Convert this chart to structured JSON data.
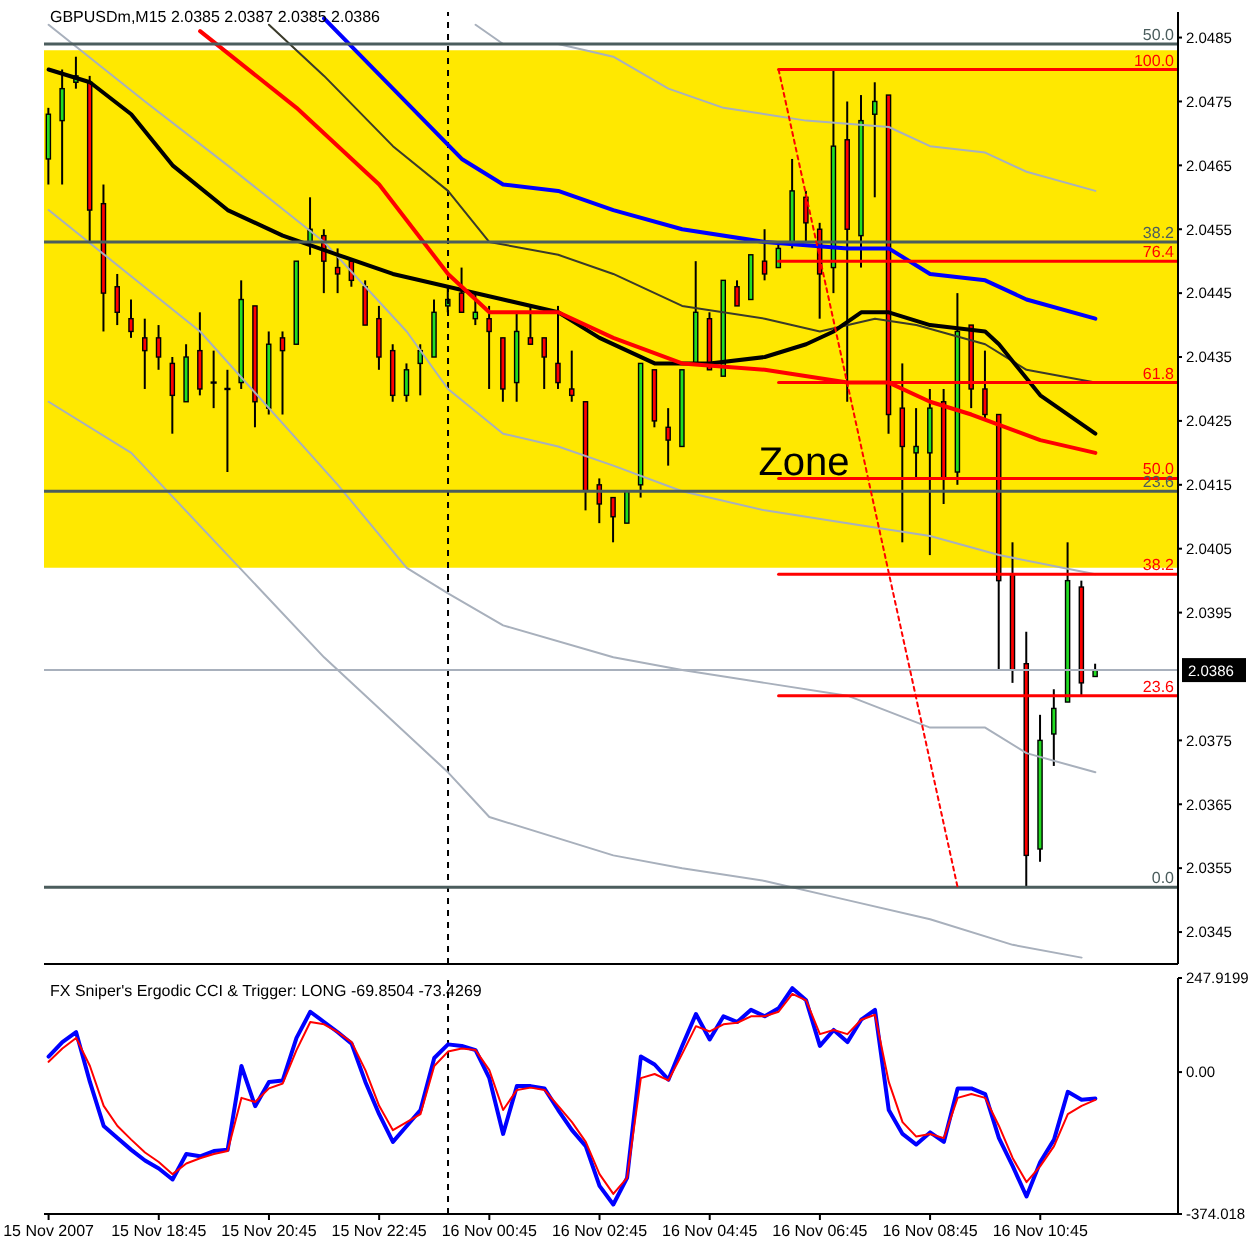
{
  "chart_data": [
    {
      "type": "candlestick",
      "title": "GBPUSDm,M15 2.0385 2.0387 2.0385 2.0386",
      "x": [
        "2007-11-15T16:45",
        "2007-11-15T17:00",
        "2007-11-15T17:15",
        "2007-11-15T17:30",
        "2007-11-15T17:45",
        "2007-11-15T18:00",
        "2007-11-15T18:15",
        "2007-11-15T18:30",
        "2007-11-15T18:45",
        "2007-11-15T19:00",
        "2007-11-15T19:15",
        "2007-11-15T19:30",
        "2007-11-15T19:45",
        "2007-11-15T20:00",
        "2007-11-15T20:15",
        "2007-11-15T20:30",
        "2007-11-15T20:45",
        "2007-11-15T21:00",
        "2007-11-15T21:15",
        "2007-11-15T21:30",
        "2007-11-15T21:45",
        "2007-11-15T22:00",
        "2007-11-15T22:15",
        "2007-11-15T22:30",
        "2007-11-15T22:45",
        "2007-11-15T23:00",
        "2007-11-15T23:15",
        "2007-11-15T23:30",
        "2007-11-15T23:45",
        "2007-11-16T00:00",
        "2007-11-16T00:15",
        "2007-11-16T00:30",
        "2007-11-16T00:45",
        "2007-11-16T01:00",
        "2007-11-16T01:15",
        "2007-11-16T01:30",
        "2007-11-16T01:45",
        "2007-11-16T02:00",
        "2007-11-16T02:15",
        "2007-11-16T02:30",
        "2007-11-16T02:45",
        "2007-11-16T03:00",
        "2007-11-16T03:15",
        "2007-11-16T03:30",
        "2007-11-16T03:45",
        "2007-11-16T04:00",
        "2007-11-16T04:15",
        "2007-11-16T04:30",
        "2007-11-16T04:45",
        "2007-11-16T05:00",
        "2007-11-16T05:15",
        "2007-11-16T05:30",
        "2007-11-16T05:45",
        "2007-11-16T06:00",
        "2007-11-16T06:15",
        "2007-11-16T06:30",
        "2007-11-16T06:45",
        "2007-11-16T07:00",
        "2007-11-16T07:15",
        "2007-11-16T07:30",
        "2007-11-16T07:45",
        "2007-11-16T08:00",
        "2007-11-16T08:15",
        "2007-11-16T08:30",
        "2007-11-16T08:45",
        "2007-11-16T09:00",
        "2007-11-16T09:15",
        "2007-11-16T09:30",
        "2007-11-16T09:45",
        "2007-11-16T10:00",
        "2007-11-16T10:15",
        "2007-11-16T10:30",
        "2007-11-16T10:45",
        "2007-11-16T11:00",
        "2007-11-16T11:15",
        "2007-11-16T11:30",
        "2007-11-16T11:45"
      ],
      "ohlc": [
        [
          2.0466,
          2.0474,
          2.0462,
          2.0473
        ],
        [
          2.0472,
          2.048,
          2.0462,
          2.0477
        ],
        [
          2.0478,
          2.0482,
          2.0477,
          2.0479
        ],
        [
          2.0478,
          2.0479,
          2.0453,
          2.0458
        ],
        [
          2.0459,
          2.0462,
          2.0439,
          2.0445
        ],
        [
          2.0446,
          2.0448,
          2.044,
          2.0442
        ],
        [
          2.0441,
          2.0444,
          2.0438,
          2.0439
        ],
        [
          2.0438,
          2.0441,
          2.043,
          2.0436
        ],
        [
          2.0438,
          2.044,
          2.0433,
          2.0435
        ],
        [
          2.0434,
          2.0435,
          2.0423,
          2.0429
        ],
        [
          2.0428,
          2.0437,
          2.0428,
          2.0435
        ],
        [
          2.0436,
          2.0442,
          2.0429,
          2.043
        ],
        [
          2.0431,
          2.0436,
          2.0427,
          2.0431
        ],
        [
          2.043,
          2.0433,
          2.0417,
          2.043
        ],
        [
          2.0431,
          2.0447,
          2.043,
          2.0444
        ],
        [
          2.0443,
          2.0443,
          2.0424,
          2.0428
        ],
        [
          2.0427,
          2.0439,
          2.0426,
          2.0437
        ],
        [
          2.0438,
          2.0439,
          2.0426,
          2.0436
        ],
        [
          2.0437,
          2.045,
          2.0437,
          2.045
        ],
        [
          2.0453,
          2.046,
          2.0451,
          2.0455
        ],
        [
          2.0454,
          2.0455,
          2.0445,
          2.045
        ],
        [
          2.0449,
          2.0452,
          2.0445,
          2.0448
        ],
        [
          2.045,
          2.045,
          2.0446,
          2.0447
        ],
        [
          2.0446,
          2.0447,
          2.044,
          2.044
        ],
        [
          2.0441,
          2.0443,
          2.0433,
          2.0435
        ],
        [
          2.0436,
          2.0437,
          2.0428,
          2.0429
        ],
        [
          2.0429,
          2.0434,
          2.0428,
          2.0433
        ],
        [
          2.0434,
          2.0437,
          2.0429,
          2.0436
        ],
        [
          2.0435,
          2.0444,
          2.0435,
          2.0442
        ],
        [
          2.0443,
          2.0446,
          2.0442,
          2.0444
        ],
        [
          2.0445,
          2.0449,
          2.0442,
          2.0442
        ],
        [
          2.0441,
          2.0445,
          2.044,
          2.0442
        ],
        [
          2.0441,
          2.0443,
          2.043,
          2.0439
        ],
        [
          2.0438,
          2.0438,
          2.0428,
          2.043
        ],
        [
          2.0431,
          2.0442,
          2.0428,
          2.0439
        ],
        [
          2.0438,
          2.0443,
          2.0437,
          2.0437
        ],
        [
          2.0438,
          2.0438,
          2.043,
          2.0435
        ],
        [
          2.0434,
          2.0443,
          2.043,
          2.0431
        ],
        [
          2.043,
          2.0436,
          2.0428,
          2.0429
        ],
        [
          2.0428,
          2.0428,
          2.0411,
          2.0414
        ],
        [
          2.0415,
          2.0416,
          2.0409,
          2.0412
        ],
        [
          2.0413,
          2.0413,
          2.0406,
          2.041
        ],
        [
          2.0409,
          2.0414,
          2.0409,
          2.0414
        ],
        [
          2.0415,
          2.0434,
          2.0413,
          2.0434
        ],
        [
          2.0433,
          2.0433,
          2.0424,
          2.0425
        ],
        [
          2.0424,
          2.0427,
          2.0418,
          2.0422
        ],
        [
          2.0421,
          2.0433,
          2.0421,
          2.0433
        ],
        [
          2.0434,
          2.045,
          2.0434,
          2.0442
        ],
        [
          2.0441,
          2.0442,
          2.0433,
          2.0433
        ],
        [
          2.0432,
          2.0447,
          2.0432,
          2.0447
        ],
        [
          2.0446,
          2.0447,
          2.0443,
          2.0443
        ],
        [
          2.0444,
          2.0451,
          2.0444,
          2.0451
        ],
        [
          2.045,
          2.0455,
          2.0447,
          2.0448
        ],
        [
          2.0449,
          2.0453,
          2.0449,
          2.0452
        ],
        [
          2.0453,
          2.0466,
          2.0452,
          2.0461
        ],
        [
          2.046,
          2.0461,
          2.0453,
          2.0456
        ],
        [
          2.0455,
          2.0456,
          2.0441,
          2.0448
        ],
        [
          2.0449,
          2.048,
          2.0445,
          2.0468
        ],
        [
          2.0469,
          2.0475,
          2.0428,
          2.0455
        ],
        [
          2.0454,
          2.0476,
          2.0449,
          2.0472
        ],
        [
          2.0473,
          2.0478,
          2.046,
          2.0475
        ],
        [
          2.0476,
          2.0476,
          2.0423,
          2.0426
        ],
        [
          2.0427,
          2.0434,
          2.0406,
          2.0421
        ],
        [
          2.042,
          2.0427,
          2.0416,
          2.0421
        ],
        [
          2.042,
          2.043,
          2.0404,
          2.0427
        ],
        [
          2.0428,
          2.043,
          2.0412,
          2.0416
        ],
        [
          2.0417,
          2.0445,
          2.0415,
          2.0439
        ],
        [
          2.044,
          2.044,
          2.0427,
          2.043
        ],
        [
          2.043,
          2.0436,
          2.0425,
          2.0426
        ],
        [
          2.0426,
          2.0426,
          2.0386,
          2.04
        ],
        [
          2.0401,
          2.0406,
          2.0384,
          2.0386
        ],
        [
          2.0387,
          2.0392,
          2.0352,
          2.0357
        ],
        [
          2.0358,
          2.0379,
          2.0356,
          2.0375
        ],
        [
          2.0376,
          2.0383,
          2.0371,
          2.038
        ],
        [
          2.0381,
          2.0406,
          2.0381,
          2.04
        ],
        [
          2.0399,
          2.04,
          2.0382,
          2.0384
        ],
        [
          2.0385,
          2.0387,
          2.0385,
          2.0386
        ]
      ],
      "colors": [
        "#22dd22",
        "#22dd22",
        "#22dd22",
        "#ff0000",
        "#ff0000",
        "#ff0000",
        "#ff0000",
        "#ff0000",
        "#ff0000",
        "#ff0000",
        "#22dd22",
        "#ff0000",
        "#000000",
        "#000000",
        "#22dd22",
        "#ff0000",
        "#22dd22",
        "#ff0000",
        "#22dd22",
        "#22dd22",
        "#ff0000",
        "#ff0000",
        "#ff0000",
        "#ff0000",
        "#ff0000",
        "#ff0000",
        "#22dd22",
        "#22dd22",
        "#22dd22",
        "#22dd22",
        "#ff0000",
        "#22dd22",
        "#ff0000",
        "#ff0000",
        "#22dd22",
        "#ff0000",
        "#ff0000",
        "#ff0000",
        "#ff0000",
        "#ff0000",
        "#ff0000",
        "#ff0000",
        "#22dd22",
        "#22dd22",
        "#ff0000",
        "#ff0000",
        "#22dd22",
        "#22dd22",
        "#ff0000",
        "#22dd22",
        "#ff0000",
        "#22dd22",
        "#ff0000",
        "#22dd22",
        "#22dd22",
        "#ff0000",
        "#ff0000",
        "#22dd22",
        "#ff0000",
        "#22dd22",
        "#22dd22",
        "#ff0000",
        "#ff0000",
        "#22dd22",
        "#22dd22",
        "#ff0000",
        "#22dd22",
        "#ff0000",
        "#ff0000",
        "#ff0000",
        "#ff0000",
        "#ff0000",
        "#22dd22",
        "#22dd22",
        "#22dd22",
        "#ff0000",
        "#22dd22"
      ],
      "xlim": [
        "2007-11-15T16:40",
        "2007-11-16T13:15"
      ],
      "ylim": [
        2.034,
        2.0489
      ],
      "yticks": [
        2.0345,
        2.0355,
        2.0365,
        2.0375,
        2.0395,
        2.0405,
        2.0415,
        2.0425,
        2.0435,
        2.0445,
        2.0455,
        2.0465,
        2.0475,
        2.0485
      ],
      "tick_labels": "y",
      "bands": [
        {
          "axis": "y",
          "from": 2.0402,
          "to": 2.0483,
          "label": "Zone",
          "color": "#ffe800"
        }
      ],
      "ref_lines": [
        {
          "axis": "x",
          "value": "2007-11-16T00:00",
          "color": "#000000",
          "line_style": "dashed"
        },
        {
          "axis": "y",
          "value": 2.0386,
          "label": "2.0386",
          "color": "#a8b0bc"
        }
      ],
      "series": [
        {
          "type": "line",
          "color": "#a8b0bc",
          "x": [
            "2007-11-15T16:45",
            "2007-11-15T18:15",
            "2007-11-15T20:00",
            "2007-11-15T21:45",
            "2007-11-16T00:00",
            "2007-11-16T00:45",
            "2007-11-16T03:00",
            "2007-11-16T04:15",
            "2007-11-16T05:45",
            "2007-11-16T07:15",
            "2007-11-16T08:45",
            "2007-11-16T10:15",
            "2007-11-16T11:30"
          ],
          "values": [
            2.0428,
            2.042,
            2.0404,
            2.0388,
            2.037,
            2.0363,
            2.0357,
            2.0355,
            2.0353,
            2.035,
            2.0347,
            2.0343,
            2.0341
          ]
        },
        {
          "type": "line",
          "color": "#a8b0bc",
          "x": [
            "2007-11-15T16:45",
            "2007-11-15T19:30",
            "2007-11-15T22:00",
            "2007-11-15T23:15",
            "2007-11-16T00:00",
            "2007-11-16T01:00",
            "2007-11-16T03:00",
            "2007-11-16T04:15",
            "2007-11-16T05:45",
            "2007-11-16T07:15",
            "2007-11-16T08:45",
            "2007-11-16T09:45",
            "2007-11-16T10:30",
            "2007-11-16T11:45"
          ],
          "values": [
            2.0458,
            2.0439,
            2.0415,
            2.0402,
            2.0398,
            2.0393,
            2.0388,
            2.0386,
            2.0384,
            2.0382,
            2.0377,
            2.0377,
            2.0373,
            2.037
          ]
        },
        {
          "type": "line",
          "color": "#a8b0bc",
          "x": [
            "2007-11-15T16:45",
            "2007-11-15T18:30",
            "2007-11-15T20:00",
            "2007-11-15T21:45",
            "2007-11-15T23:15",
            "2007-11-16T00:00",
            "2007-11-16T01:00",
            "2007-11-16T02:00",
            "2007-11-16T03:00",
            "2007-11-16T04:15",
            "2007-11-16T05:45",
            "2007-11-16T07:15",
            "2007-11-16T08:45",
            "2007-11-16T10:00",
            "2007-11-16T11:45"
          ],
          "values": [
            2.0487,
            2.0475,
            2.0465,
            2.0453,
            2.0439,
            2.043,
            2.0423,
            2.0421,
            2.0418,
            2.0414,
            2.0411,
            2.0409,
            2.0407,
            2.0404,
            2.0401
          ]
        },
        {
          "type": "line",
          "color": "#a8b0bc",
          "x": [
            "2007-11-16T00:30",
            "2007-11-16T01:00",
            "2007-11-16T02:00",
            "2007-11-16T03:00",
            "2007-11-16T04:00",
            "2007-11-16T05:00",
            "2007-11-16T06:30",
            "2007-11-16T08:00",
            "2007-11-16T08:45",
            "2007-11-16T09:45",
            "2007-11-16T10:30",
            "2007-11-16T11:45"
          ],
          "values": [
            2.0487,
            2.0484,
            2.0484,
            2.0482,
            2.0477,
            2.0474,
            2.0472,
            2.0471,
            2.0468,
            2.0467,
            2.0464,
            2.0461
          ]
        },
        {
          "type": "line",
          "color": "#3a3a2a",
          "x": [
            "2007-11-15T20:45",
            "2007-11-15T21:45",
            "2007-11-15T23:00",
            "2007-11-16T00:00",
            "2007-11-16T00:45",
            "2007-11-16T02:00",
            "2007-11-16T03:00",
            "2007-11-16T04:15",
            "2007-11-16T05:45",
            "2007-11-16T06:45",
            "2007-11-16T07:45",
            "2007-11-16T08:30",
            "2007-11-16T09:45",
            "2007-11-16T10:30",
            "2007-11-16T11:45"
          ],
          "values": [
            2.0487,
            2.0479,
            2.0468,
            2.0461,
            2.0453,
            2.0451,
            2.0448,
            2.0443,
            2.0441,
            2.0439,
            2.0441,
            2.044,
            2.0437,
            2.0433,
            2.0431
          ]
        },
        {
          "type": "line",
          "color": "#000000",
          "x": [
            "2007-11-15T16:45",
            "2007-11-15T17:30",
            "2007-11-15T18:15",
            "2007-11-15T19:00",
            "2007-11-15T20:00",
            "2007-11-15T21:00",
            "2007-11-15T22:00",
            "2007-11-15T23:00",
            "2007-11-16T00:00",
            "2007-11-16T01:00",
            "2007-11-16T02:00",
            "2007-11-16T02:45",
            "2007-11-16T03:45",
            "2007-11-16T04:45",
            "2007-11-16T05:45",
            "2007-11-16T06:30",
            "2007-11-16T07:00",
            "2007-11-16T07:30",
            "2007-11-16T08:00",
            "2007-11-16T08:45",
            "2007-11-16T09:45",
            "2007-11-16T10:00",
            "2007-11-16T10:45",
            "2007-11-16T11:45"
          ],
          "values": [
            2.048,
            2.0478,
            2.0473,
            2.0465,
            2.0458,
            2.0454,
            2.0451,
            2.0448,
            2.0446,
            2.0444,
            2.0442,
            2.0438,
            2.0434,
            2.0434,
            2.0435,
            2.0437,
            2.0439,
            2.0442,
            2.0442,
            2.044,
            2.0439,
            2.0437,
            2.0429,
            2.0423
          ]
        },
        {
          "type": "line",
          "color": "#ff0000",
          "x": [
            "2007-11-15T19:30",
            "2007-11-15T21:15",
            "2007-11-15T22:45",
            "2007-11-16T00:00",
            "2007-11-16T00:45",
            "2007-11-16T02:00",
            "2007-11-16T03:00",
            "2007-11-16T04:15",
            "2007-11-16T05:45",
            "2007-11-16T07:15",
            "2007-11-16T08:00",
            "2007-11-16T08:45",
            "2007-11-16T09:30",
            "2007-11-16T10:45",
            "2007-11-16T11:45"
          ],
          "values": [
            2.0486,
            2.0474,
            2.0462,
            2.0448,
            2.0442,
            2.0442,
            2.0438,
            2.0434,
            2.0433,
            2.0431,
            2.0431,
            2.0428,
            2.0426,
            2.0422,
            2.042
          ]
        },
        {
          "type": "line",
          "color": "#0000ff",
          "x": [
            "2007-11-15T21:45",
            "2007-11-15T23:00",
            "2007-11-16T00:15",
            "2007-11-16T01:00",
            "2007-11-16T02:00",
            "2007-11-16T03:00",
            "2007-11-16T04:15",
            "2007-11-16T05:45",
            "2007-11-16T07:15",
            "2007-11-16T08:00",
            "2007-11-16T08:45",
            "2007-11-16T09:45",
            "2007-11-16T10:30",
            "2007-11-16T11:45"
          ],
          "values": [
            2.0488,
            2.0477,
            2.0466,
            2.0462,
            2.0461,
            2.0458,
            2.0455,
            2.0453,
            2.0452,
            2.0452,
            2.0448,
            2.0447,
            2.0444,
            2.0441
          ]
        },
        {
          "type": "line",
          "name": "50.0",
          "color": "#4b5d5d",
          "x": [
            "2007-11-15T16:40",
            "2007-11-16T13:15"
          ],
          "values": [
            2.0484,
            2.0484
          ]
        },
        {
          "type": "line",
          "name": "38.2",
          "color": "#4b5d5d",
          "x": [
            "2007-11-15T16:40",
            "2007-11-16T13:15"
          ],
          "values": [
            2.0453,
            2.0453
          ]
        },
        {
          "type": "line",
          "name": "23.6",
          "color": "#4b5d5d",
          "x": [
            "2007-11-15T16:40",
            "2007-11-16T13:15"
          ],
          "values": [
            2.0414,
            2.0414
          ]
        },
        {
          "type": "line",
          "name": "0.0",
          "color": "#4b5d5d",
          "x": [
            "2007-11-15T16:40",
            "2007-11-16T13:15"
          ],
          "values": [
            2.0352,
            2.0352
          ]
        },
        {
          "type": "line",
          "name": "100.0",
          "color": "#ff0000",
          "x": [
            "2007-11-16T06:00",
            "2007-11-16T13:15"
          ],
          "values": [
            2.048,
            2.048
          ]
        },
        {
          "type": "line",
          "name": "76.4",
          "color": "#ff0000",
          "x": [
            "2007-11-16T06:00",
            "2007-11-16T13:15"
          ],
          "values": [
            2.045,
            2.045
          ]
        },
        {
          "type": "line",
          "name": "61.8",
          "color": "#ff0000",
          "x": [
            "2007-11-16T06:00",
            "2007-11-16T13:15"
          ],
          "values": [
            2.0431,
            2.0431
          ]
        },
        {
          "type": "line",
          "name": "50.0",
          "color": "#ff0000",
          "x": [
            "2007-11-16T06:00",
            "2007-11-16T13:15"
          ],
          "values": [
            2.0416,
            2.0416
          ]
        },
        {
          "type": "line",
          "name": "38.2",
          "color": "#ff0000",
          "x": [
            "2007-11-16T06:00",
            "2007-11-16T13:15"
          ],
          "values": [
            2.0401,
            2.0401
          ]
        },
        {
          "type": "line",
          "name": "23.6",
          "color": "#ff0000",
          "x": [
            "2007-11-16T06:00",
            "2007-11-16T13:15"
          ],
          "values": [
            2.0382,
            2.0382
          ]
        },
        {
          "type": "line",
          "color": "#ff0000",
          "line_style": "dotted",
          "x": [
            "2007-11-16T06:00",
            "2007-11-16T09:15"
          ],
          "values": [
            2.048,
            2.0352
          ]
        }
      ]
    },
    {
      "type": "line",
      "title": "FX Sniper's Ergodic CCI & Trigger: LONG -69.8504 -73.4269",
      "x": [
        "2007-11-15T16:45",
        "2007-11-15T17:00",
        "2007-11-15T17:15",
        "2007-11-15T17:30",
        "2007-11-15T17:45",
        "2007-11-15T18:00",
        "2007-11-15T18:15",
        "2007-11-15T18:30",
        "2007-11-15T18:45",
        "2007-11-15T19:00",
        "2007-11-15T19:15",
        "2007-11-15T19:30",
        "2007-11-15T19:45",
        "2007-11-15T20:00",
        "2007-11-15T20:15",
        "2007-11-15T20:30",
        "2007-11-15T20:45",
        "2007-11-15T21:00",
        "2007-11-15T21:15",
        "2007-11-15T21:30",
        "2007-11-15T21:45",
        "2007-11-15T22:00",
        "2007-11-15T22:15",
        "2007-11-15T22:30",
        "2007-11-15T22:45",
        "2007-11-15T23:00",
        "2007-11-15T23:15",
        "2007-11-15T23:30",
        "2007-11-15T23:45",
        "2007-11-16T00:00",
        "2007-11-16T00:15",
        "2007-11-16T00:30",
        "2007-11-16T00:45",
        "2007-11-16T01:00",
        "2007-11-16T01:15",
        "2007-11-16T01:30",
        "2007-11-16T01:45",
        "2007-11-16T02:00",
        "2007-11-16T02:15",
        "2007-11-16T02:30",
        "2007-11-16T02:45",
        "2007-11-16T03:00",
        "2007-11-16T03:15",
        "2007-11-16T03:30",
        "2007-11-16T03:45",
        "2007-11-16T04:00",
        "2007-11-16T04:15",
        "2007-11-16T04:30",
        "2007-11-16T04:45",
        "2007-11-16T05:00",
        "2007-11-16T05:15",
        "2007-11-16T05:30",
        "2007-11-16T05:45",
        "2007-11-16T06:00",
        "2007-11-16T06:15",
        "2007-11-16T06:30",
        "2007-11-16T06:45",
        "2007-11-16T07:00",
        "2007-11-16T07:15",
        "2007-11-16T07:30",
        "2007-11-16T07:45",
        "2007-11-16T08:00",
        "2007-11-16T08:15",
        "2007-11-16T08:30",
        "2007-11-16T08:45",
        "2007-11-16T09:00",
        "2007-11-16T09:15",
        "2007-11-16T09:30",
        "2007-11-16T09:45",
        "2007-11-16T10:00",
        "2007-11-16T10:15",
        "2007-11-16T10:30",
        "2007-11-16T10:45",
        "2007-11-16T11:00",
        "2007-11-16T11:15",
        "2007-11-16T11:30",
        "2007-11-16T11:45"
      ],
      "series": [
        {
          "color": "#0000ff",
          "values": [
            41,
            79,
            105,
            -26,
            -142,
            -174,
            -205,
            -233,
            -254,
            -283,
            -216,
            -222,
            -208,
            -205,
            16,
            -90,
            -26,
            -22,
            90,
            159,
            132,
            105,
            75,
            -26,
            -111,
            -184,
            -142,
            -100,
            37,
            73,
            69,
            58,
            -16,
            -163,
            -37,
            -37,
            -43,
            -100,
            -153,
            -195,
            -300,
            -349,
            -279,
            41,
            20,
            -20,
            69,
            153,
            86,
            147,
            132,
            164,
            147,
            168,
            221,
            189,
            69,
            111,
            79,
            138,
            164,
            -100,
            -163,
            -191,
            -159,
            -184,
            -43,
            -43,
            -58,
            -174,
            -248,
            -328,
            -237,
            -178,
            -52,
            -73,
            -69.8504
          ]
        },
        {
          "color": "#ff0000",
          "values": [
            27,
            62,
            90,
            16,
            -89,
            -142,
            -178,
            -212,
            -237,
            -269,
            -241,
            -227,
            -216,
            -208,
            -68,
            -79,
            -43,
            -30,
            58,
            132,
            126,
            105,
            79,
            5,
            -89,
            -153,
            -132,
            -111,
            16,
            54,
            62,
            58,
            5,
            -100,
            -47,
            -41,
            -47,
            -89,
            -132,
            -184,
            -269,
            -321,
            -279,
            -16,
            -5,
            -22,
            48,
            121,
            107,
            126,
            130,
            147,
            147,
            159,
            206,
            189,
            100,
            111,
            100,
            138,
            151,
            -26,
            -132,
            -170,
            -163,
            -174,
            -68,
            -58,
            -68,
            -142,
            -227,
            -290,
            -248,
            -195,
            -111,
            -89,
            -73.4269
          ]
        }
      ],
      "xlim": [
        "2007-11-15T16:40",
        "2007-11-16T13:15"
      ],
      "xticks": [
        {
          "value": "2007-11-15T16:45",
          "label": "15 Nov 2007"
        },
        {
          "value": "2007-11-15T18:45",
          "label": "15 Nov 18:45"
        },
        {
          "value": "2007-11-15T20:45",
          "label": "15 Nov 20:45"
        },
        {
          "value": "2007-11-15T22:45",
          "label": "15 Nov 22:45"
        },
        {
          "value": "2007-11-16T00:45",
          "label": "16 Nov 00:45"
        },
        {
          "value": "2007-11-16T02:45",
          "label": "16 Nov 02:45"
        },
        {
          "value": "2007-11-16T04:45",
          "label": "16 Nov 04:45"
        },
        {
          "value": "2007-11-16T06:45",
          "label": "16 Nov 06:45"
        },
        {
          "value": "2007-11-16T08:45",
          "label": "16 Nov 08:45"
        },
        {
          "value": "2007-11-16T10:45",
          "label": "16 Nov 10:45"
        }
      ],
      "ylim": [
        -374.018,
        247.9199
      ],
      "yticks": [
        -374.018,
        {
          "value": 0,
          "label": "0.00"
        },
        247.9199
      ],
      "ref_lines": [
        {
          "axis": "x",
          "value": "2007-11-16T00:00",
          "color": "#000000",
          "line_style": "dashed"
        }
      ]
    }
  ]
}
